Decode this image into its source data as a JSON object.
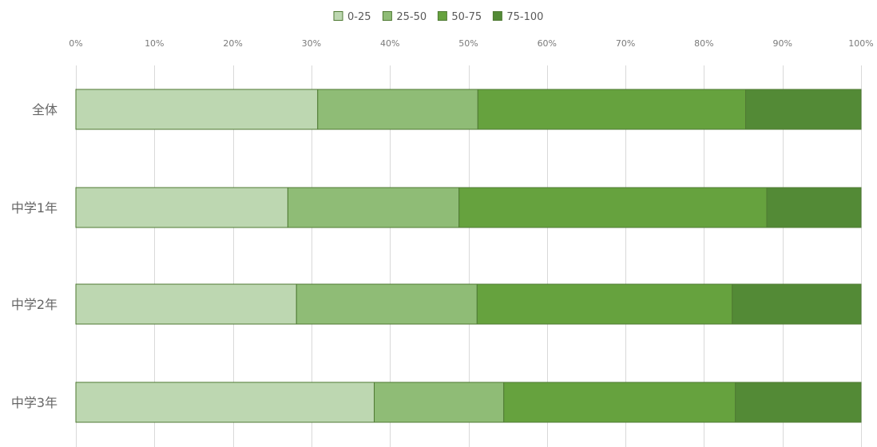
{
  "chart_data": {
    "type": "bar",
    "orientation": "horizontal",
    "stacked": "percent",
    "categories": [
      "全体",
      "中学1年",
      "中学2年",
      "中学3年"
    ],
    "series": [
      {
        "name": "0-25",
        "color": "#bdd7b1",
        "values": [
          30.8,
          27.0,
          28.1,
          38.0
        ]
      },
      {
        "name": "25-50",
        "color": "#8fbc76",
        "values": [
          20.4,
          21.8,
          23.0,
          16.5
        ]
      },
      {
        "name": "50-75",
        "color": "#66a23e",
        "values": [
          34.1,
          39.2,
          32.5,
          29.5
        ]
      },
      {
        "name": "75-100",
        "color": "#538a36",
        "values": [
          14.7,
          12.0,
          16.4,
          16.0
        ]
      }
    ],
    "x_ticks": [
      "0%",
      "10%",
      "20%",
      "30%",
      "40%",
      "50%",
      "60%",
      "70%",
      "80%",
      "90%",
      "100%"
    ],
    "xlim": [
      0,
      100
    ],
    "axis_position": "top",
    "legend_position": "top-center",
    "gridlines": true,
    "gridline_color": "#d9d9d9"
  }
}
